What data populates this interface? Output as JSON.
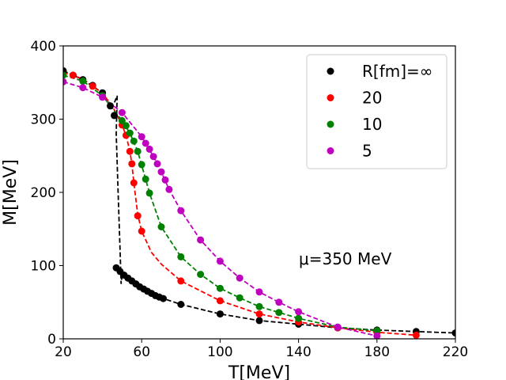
{
  "chart_data": {
    "type": "scatter",
    "xlabel": "T[MeV]",
    "ylabel": "M[MeV]",
    "xlim": [
      20,
      220
    ],
    "ylim": [
      0,
      400
    ],
    "xticks": [
      "20",
      "60",
      "100",
      "140",
      "180",
      "220"
    ],
    "yticks": [
      "0",
      "100",
      "200",
      "300",
      "400"
    ],
    "xtick_values": [
      20,
      60,
      100,
      140,
      180,
      220
    ],
    "ytick_values": [
      0,
      100,
      200,
      300,
      400
    ],
    "legend_position": "top-right",
    "annotation": {
      "text": "μ=350 MeV",
      "x": 140,
      "y": 100
    },
    "series": [
      {
        "name": "R[fm]=∞",
        "color": "#000000",
        "points": [
          [
            20,
            366
          ],
          [
            25,
            360
          ],
          [
            30,
            354
          ],
          [
            35,
            346
          ],
          [
            40,
            336
          ],
          [
            44,
            318
          ],
          [
            46,
            305
          ],
          [
            47,
            97
          ],
          [
            49,
            92
          ],
          [
            51,
            87
          ],
          [
            53,
            83
          ],
          [
            55,
            79
          ],
          [
            57,
            75
          ],
          [
            59,
            71
          ],
          [
            61,
            68
          ],
          [
            63,
            65
          ],
          [
            65,
            62
          ],
          [
            67,
            59
          ],
          [
            69,
            57
          ],
          [
            71,
            55
          ],
          [
            80,
            47
          ],
          [
            100,
            34
          ],
          [
            120,
            25
          ],
          [
            140,
            20
          ],
          [
            160,
            15
          ],
          [
            180,
            12
          ],
          [
            200,
            10
          ],
          [
            220,
            8
          ]
        ],
        "curve": [
          [
            20,
            366
          ],
          [
            30,
            354
          ],
          [
            40,
            336
          ],
          [
            44,
            320
          ],
          [
            46,
            322
          ],
          [
            47.5,
            332
          ],
          [
            47,
            280
          ],
          [
            48,
            200
          ],
          [
            49,
            120
          ],
          [
            49.5,
            75
          ],
          [
            50,
            88
          ],
          [
            52,
            85
          ],
          [
            56,
            77
          ],
          [
            60,
            70
          ],
          [
            65,
            62
          ],
          [
            70,
            56
          ],
          [
            80,
            47
          ],
          [
            100,
            34
          ],
          [
            120,
            25
          ],
          [
            140,
            20
          ],
          [
            160,
            15
          ],
          [
            180,
            12
          ],
          [
            200,
            10
          ],
          [
            220,
            8
          ]
        ]
      },
      {
        "name": "20",
        "color": "#ff0000",
        "points": [
          [
            25,
            360
          ],
          [
            35,
            345
          ],
          [
            50,
            292
          ],
          [
            52,
            278
          ],
          [
            54,
            256
          ],
          [
            55,
            239
          ],
          [
            56,
            213
          ],
          [
            58,
            168
          ],
          [
            60,
            147
          ],
          [
            80,
            79
          ],
          [
            100,
            52
          ],
          [
            120,
            34
          ],
          [
            140,
            23
          ],
          [
            160,
            15
          ],
          [
            180,
            9
          ],
          [
            200,
            5
          ]
        ],
        "curve": [
          [
            20,
            364
          ],
          [
            30,
            355
          ],
          [
            40,
            335
          ],
          [
            45,
            318
          ],
          [
            50,
            292
          ],
          [
            52,
            278
          ],
          [
            54,
            256
          ],
          [
            55,
            239
          ],
          [
            56,
            213
          ],
          [
            58,
            170
          ],
          [
            60,
            147
          ],
          [
            65,
            118
          ],
          [
            70,
            102
          ],
          [
            80,
            79
          ],
          [
            100,
            52
          ],
          [
            120,
            34
          ],
          [
            140,
            23
          ],
          [
            160,
            15
          ],
          [
            180,
            9
          ],
          [
            200,
            5
          ]
        ]
      },
      {
        "name": "10",
        "color": "#008000",
        "points": [
          [
            20,
            360
          ],
          [
            30,
            352
          ],
          [
            40,
            332
          ],
          [
            50,
            298
          ],
          [
            52,
            291
          ],
          [
            54,
            281
          ],
          [
            56,
            270
          ],
          [
            58,
            256
          ],
          [
            60,
            238
          ],
          [
            62,
            218
          ],
          [
            64,
            199
          ],
          [
            70,
            153
          ],
          [
            80,
            112
          ],
          [
            90,
            88
          ],
          [
            100,
            69
          ],
          [
            110,
            56
          ],
          [
            120,
            44
          ],
          [
            130,
            36
          ],
          [
            140,
            28
          ],
          [
            160,
            16
          ],
          [
            180,
            11
          ]
        ],
        "curve": [
          [
            20,
            360
          ],
          [
            30,
            352
          ],
          [
            40,
            332
          ],
          [
            50,
            298
          ],
          [
            54,
            281
          ],
          [
            58,
            256
          ],
          [
            62,
            218
          ],
          [
            64,
            199
          ],
          [
            70,
            153
          ],
          [
            80,
            112
          ],
          [
            90,
            88
          ],
          [
            100,
            69
          ],
          [
            110,
            56
          ],
          [
            120,
            44
          ],
          [
            130,
            36
          ],
          [
            140,
            28
          ],
          [
            160,
            16
          ],
          [
            180,
            11
          ]
        ]
      },
      {
        "name": "5",
        "color": "#bf00bf",
        "points": [
          [
            20,
            351
          ],
          [
            30,
            343
          ],
          [
            40,
            330
          ],
          [
            50,
            309
          ],
          [
            60,
            276
          ],
          [
            62,
            267
          ],
          [
            64,
            259
          ],
          [
            66,
            249
          ],
          [
            68,
            239
          ],
          [
            70,
            228
          ],
          [
            72,
            217
          ],
          [
            74,
            204
          ],
          [
            80,
            175
          ],
          [
            90,
            135
          ],
          [
            100,
            106
          ],
          [
            110,
            83
          ],
          [
            120,
            64
          ],
          [
            130,
            50
          ],
          [
            140,
            37
          ],
          [
            160,
            16
          ],
          [
            180,
            4
          ]
        ],
        "curve": [
          [
            20,
            351
          ],
          [
            30,
            343
          ],
          [
            40,
            330
          ],
          [
            50,
            309
          ],
          [
            60,
            276
          ],
          [
            66,
            249
          ],
          [
            70,
            228
          ],
          [
            74,
            204
          ],
          [
            80,
            175
          ],
          [
            90,
            135
          ],
          [
            100,
            106
          ],
          [
            110,
            83
          ],
          [
            120,
            64
          ],
          [
            130,
            50
          ],
          [
            140,
            37
          ],
          [
            160,
            16
          ],
          [
            180,
            4
          ]
        ]
      }
    ]
  }
}
